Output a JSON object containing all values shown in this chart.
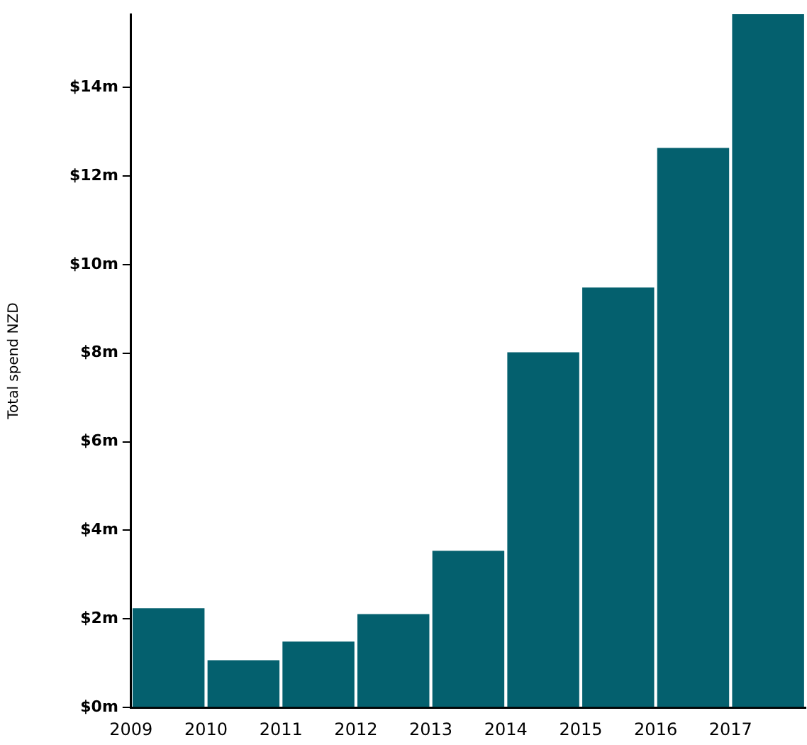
{
  "chart_data": {
    "type": "histogram",
    "ylabel": "Total spend NZD",
    "bins": [
      2009,
      2010,
      2011,
      2012,
      2013,
      2014,
      2015,
      2016,
      2017,
      2018
    ],
    "values": [
      2.24,
      1.07,
      1.49,
      2.11,
      3.54,
      8.02,
      9.48,
      12.63,
      15.65
    ],
    "color": "#04606e",
    "xlim": [
      2009,
      2018
    ],
    "xticks": [
      2009,
      2010,
      2011,
      2012,
      2013,
      2014,
      2015,
      2016,
      2017
    ],
    "ylim": [
      0,
      15.65
    ],
    "yticks": [
      {
        "value": 0,
        "label": "$0m"
      },
      {
        "value": 2,
        "label": "$2m"
      },
      {
        "value": 4,
        "label": "$4m"
      },
      {
        "value": 6,
        "label": "$6m"
      },
      {
        "value": 8,
        "label": "$8m"
      },
      {
        "value": 10,
        "label": "$10m"
      },
      {
        "value": 12,
        "label": "$12m"
      },
      {
        "value": 14,
        "label": "$14m"
      }
    ],
    "grid": false,
    "legend": false
  }
}
